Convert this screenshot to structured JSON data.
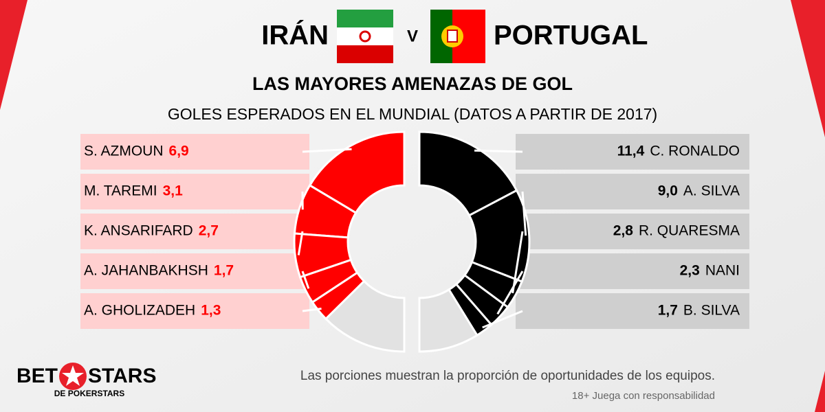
{
  "header": {
    "vs": "V",
    "title": "LAS MAYORES AMENAZAS DE GOL",
    "subtitle": "GOLES ESPERADOS EN EL MUNDIAL (DATOS A PARTIR DE 2017)"
  },
  "chart_data": {
    "type": "split-donut",
    "teams": [
      {
        "name": "IRÁN",
        "color": "#ff0000",
        "rest_color": "#e2e2e2",
        "row_color": "#ffd0d0",
        "ylim": [
          0,
          21
        ],
        "players": [
          "S. AZMOUN",
          "M. TAREMI",
          "K. ANSARIFARD",
          "A. JAHANBAKHSH",
          "A. GHOLIZADEH"
        ],
        "values": [
          6.9,
          3.1,
          2.7,
          1.7,
          1.3
        ],
        "value_labels": [
          "6,9",
          "3,1",
          "2,7",
          "1,7",
          "1,3"
        ]
      },
      {
        "name": "PORTUGAL",
        "color": "#000000",
        "rest_color": "#e2e2e2",
        "row_color": "#cfcfcf",
        "ylim": [
          0,
          33
        ],
        "players": [
          "C. RONALDO",
          "A. SILVA",
          "R. QUARESMA",
          "NANI",
          "B. SILVA"
        ],
        "values": [
          11.4,
          9.0,
          2.8,
          2.3,
          1.7
        ],
        "value_labels": [
          "11,4",
          "9,0",
          "2,8",
          "2,3",
          "1,7"
        ]
      }
    ]
  },
  "footer": {
    "note": "Las porciones muestran la proporción de oportunidades de los equipos.",
    "age": "18+ Juega con responsabilidad",
    "logo_bet": "BET",
    "logo_stars": "STARS",
    "logo_sub": "DE POKERSTARS"
  }
}
